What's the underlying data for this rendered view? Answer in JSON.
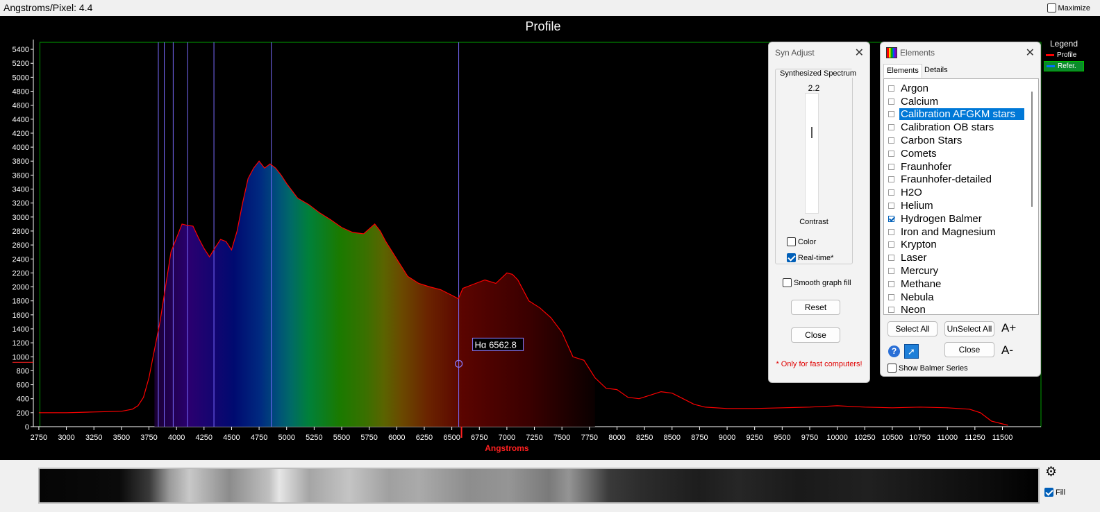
{
  "window": {
    "title": "Angstroms/Pixel: 4.4",
    "maximize_label": "Maximize",
    "maximize_checked": false
  },
  "chart_data": {
    "type": "area",
    "title": "Profile",
    "xlabel": "Angstroms",
    "ylabel": "",
    "xlim": [
      2700,
      11850
    ],
    "ylim": [
      0,
      5500
    ],
    "x_ticks": [
      2750,
      3000,
      3250,
      3500,
      3750,
      4000,
      4250,
      4500,
      4750,
      5000,
      5250,
      5500,
      5750,
      6000,
      6250,
      6500,
      6750,
      7000,
      7250,
      7500,
      7750,
      8000,
      8250,
      8500,
      8750,
      9000,
      9250,
      9500,
      9750,
      10000,
      10250,
      10500,
      10750,
      11000,
      11250,
      11500
    ],
    "y_ticks": [
      0,
      200,
      400,
      600,
      800,
      1000,
      1200,
      1400,
      1600,
      1800,
      2000,
      2200,
      2400,
      2600,
      2800,
      3000,
      3200,
      3400,
      3600,
      3800,
      4000,
      4200,
      4400,
      4600,
      4800,
      5000,
      5200,
      5400
    ],
    "legend": {
      "title": "Legend",
      "position": "top-right"
    },
    "series": [
      {
        "name": "Profile",
        "color": "#ff0000",
        "x": [
          2750,
          3000,
          3250,
          3500,
          3600,
          3650,
          3700,
          3750,
          3800,
          3850,
          3900,
          3950,
          4000,
          4050,
          4100,
          4150,
          4200,
          4250,
          4300,
          4350,
          4400,
          4450,
          4500,
          4550,
          4600,
          4650,
          4700,
          4750,
          4800,
          4850,
          4900,
          4950,
          5000,
          5100,
          5200,
          5300,
          5400,
          5500,
          5600,
          5700,
          5800,
          5850,
          5900,
          6000,
          6100,
          6200,
          6300,
          6400,
          6500,
          6560,
          6600,
          6700,
          6800,
          6900,
          7000,
          7050,
          7100,
          7200,
          7300,
          7400,
          7500,
          7600,
          7700,
          7800,
          7900,
          8000,
          8100,
          8200,
          8300,
          8400,
          8500,
          8600,
          8700,
          8800,
          9000,
          9250,
          9500,
          9750,
          10000,
          10250,
          10500,
          10750,
          11000,
          11200,
          11300,
          11400,
          11500,
          11550
        ],
        "y": [
          200,
          200,
          210,
          220,
          250,
          300,
          420,
          700,
          1100,
          1500,
          2000,
          2500,
          2700,
          2900,
          2880,
          2870,
          2700,
          2550,
          2430,
          2560,
          2680,
          2650,
          2530,
          2800,
          3200,
          3550,
          3700,
          3800,
          3700,
          3760,
          3700,
          3600,
          3480,
          3270,
          3180,
          3060,
          2960,
          2850,
          2780,
          2760,
          2900,
          2800,
          2650,
          2400,
          2150,
          2050,
          2000,
          1960,
          1880,
          1830,
          1980,
          2040,
          2100,
          2050,
          2200,
          2180,
          2100,
          1800,
          1700,
          1560,
          1350,
          1000,
          950,
          700,
          550,
          530,
          420,
          400,
          450,
          500,
          480,
          400,
          320,
          280,
          260,
          260,
          270,
          280,
          300,
          280,
          270,
          280,
          270,
          250,
          200,
          80,
          40,
          20
        ]
      },
      {
        "name": "Refer.",
        "color": "#0070ff",
        "x": [],
        "y": []
      }
    ],
    "line_markers": [
      3835,
      3889,
      3970,
      4101,
      4340,
      4861,
      6562.8
    ],
    "annotation": {
      "label": "Hα  6562.8",
      "x": 6562.8,
      "y": 900
    }
  },
  "syn_adjust": {
    "title": "Syn Adjust",
    "group_label": "Synthesized Spectrum",
    "value": "2.2",
    "slider_fraction": 0.32,
    "contrast_label": "Contrast",
    "color_label": "Color",
    "color_checked": false,
    "realtime_label": "Real-time*",
    "realtime_checked": true,
    "smooth_label": "Smooth graph fill",
    "smooth_checked": false,
    "reset_label": "Reset",
    "close_label": "Close",
    "note": "* Only for fast computers!"
  },
  "elements": {
    "title": "Elements",
    "tabs": [
      "Elements",
      "Details"
    ],
    "active_tab": 0,
    "items": [
      {
        "label": "Argon",
        "checked": false,
        "selected": false
      },
      {
        "label": "Calcium",
        "checked": false,
        "selected": false
      },
      {
        "label": "Calibration AFGKM stars",
        "checked": false,
        "selected": true
      },
      {
        "label": "Calibration OB stars",
        "checked": false,
        "selected": false
      },
      {
        "label": "Carbon Stars",
        "checked": false,
        "selected": false
      },
      {
        "label": "Comets",
        "checked": false,
        "selected": false
      },
      {
        "label": "Fraunhofer",
        "checked": false,
        "selected": false
      },
      {
        "label": "Fraunhofer-detailed",
        "checked": false,
        "selected": false
      },
      {
        "label": "H2O",
        "checked": false,
        "selected": false
      },
      {
        "label": "Helium",
        "checked": false,
        "selected": false
      },
      {
        "label": "Hydrogen Balmer",
        "checked": true,
        "selected": false
      },
      {
        "label": "Iron and Magnesium",
        "checked": false,
        "selected": false
      },
      {
        "label": "Krypton",
        "checked": false,
        "selected": false
      },
      {
        "label": "Laser",
        "checked": false,
        "selected": false
      },
      {
        "label": "Mercury",
        "checked": false,
        "selected": false
      },
      {
        "label": "Methane",
        "checked": false,
        "selected": false
      },
      {
        "label": "Nebula",
        "checked": false,
        "selected": false
      },
      {
        "label": "Neon",
        "checked": false,
        "selected": false
      }
    ],
    "select_all_label": "Select All",
    "unselect_all_label": "UnSelect All",
    "font_up_label": "A+",
    "font_down_label": "A-",
    "close_label": "Close",
    "show_balmer_label": "Show Balmer Series",
    "show_balmer_checked": false
  },
  "bottom": {
    "fill_label": "Fill",
    "fill_checked": true
  }
}
